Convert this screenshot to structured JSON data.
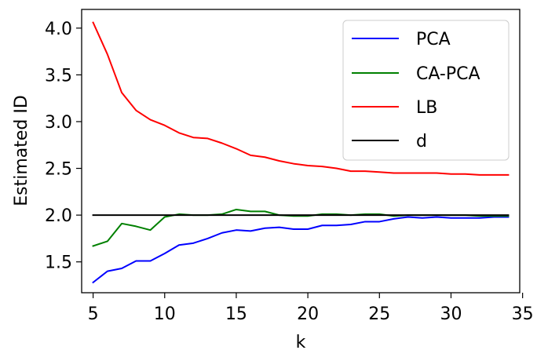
{
  "chart_data": {
    "type": "line",
    "title": "",
    "xlabel": "k",
    "ylabel": "Estimated ID",
    "xlim": [
      4.2,
      34.8
    ],
    "ylim": [
      1.17,
      4.2
    ],
    "xticks": [
      5,
      10,
      15,
      20,
      25,
      30,
      35
    ],
    "yticks": [
      1.5,
      2.0,
      2.5,
      3.0,
      3.5,
      4.0
    ],
    "xtick_labels": [
      "5",
      "10",
      "15",
      "20",
      "25",
      "30",
      "35"
    ],
    "ytick_labels": [
      "1.5",
      "2.0",
      "2.5",
      "3.0",
      "3.5",
      "4.0"
    ],
    "grid": false,
    "legend": "top-right",
    "x": [
      5,
      6,
      7,
      8,
      9,
      10,
      11,
      12,
      13,
      14,
      15,
      16,
      17,
      18,
      19,
      20,
      21,
      22,
      23,
      24,
      25,
      26,
      27,
      28,
      29,
      30,
      31,
      32,
      33,
      34
    ],
    "series": [
      {
        "name": "PCA",
        "color": "#0000ff",
        "values": [
          1.28,
          1.4,
          1.43,
          1.51,
          1.51,
          1.59,
          1.68,
          1.7,
          1.75,
          1.81,
          1.84,
          1.83,
          1.86,
          1.87,
          1.85,
          1.85,
          1.89,
          1.89,
          1.9,
          1.93,
          1.93,
          1.96,
          1.98,
          1.97,
          1.98,
          1.97,
          1.97,
          1.97,
          1.98,
          1.98
        ]
      },
      {
        "name": "CA-PCA",
        "color": "#008000",
        "values": [
          1.67,
          1.72,
          1.91,
          1.88,
          1.84,
          1.98,
          2.01,
          2.0,
          2.0,
          2.01,
          2.06,
          2.04,
          2.04,
          2.0,
          1.99,
          1.99,
          2.01,
          2.01,
          2.0,
          2.01,
          2.01,
          1.99,
          2.0,
          2.0,
          2.0,
          2.0,
          2.0,
          1.99,
          1.99,
          1.99
        ]
      },
      {
        "name": "LB",
        "color": "#ff0000",
        "values": [
          4.06,
          3.72,
          3.31,
          3.12,
          3.02,
          2.96,
          2.88,
          2.83,
          2.82,
          2.77,
          2.71,
          2.64,
          2.62,
          2.58,
          2.55,
          2.53,
          2.52,
          2.5,
          2.47,
          2.47,
          2.46,
          2.45,
          2.45,
          2.45,
          2.45,
          2.44,
          2.44,
          2.43,
          2.43,
          2.43
        ]
      },
      {
        "name": "d",
        "color": "#000000",
        "values": [
          2,
          2,
          2,
          2,
          2,
          2,
          2,
          2,
          2,
          2,
          2,
          2,
          2,
          2,
          2,
          2,
          2,
          2,
          2,
          2,
          2,
          2,
          2,
          2,
          2,
          2,
          2,
          2,
          2,
          2
        ]
      }
    ]
  }
}
